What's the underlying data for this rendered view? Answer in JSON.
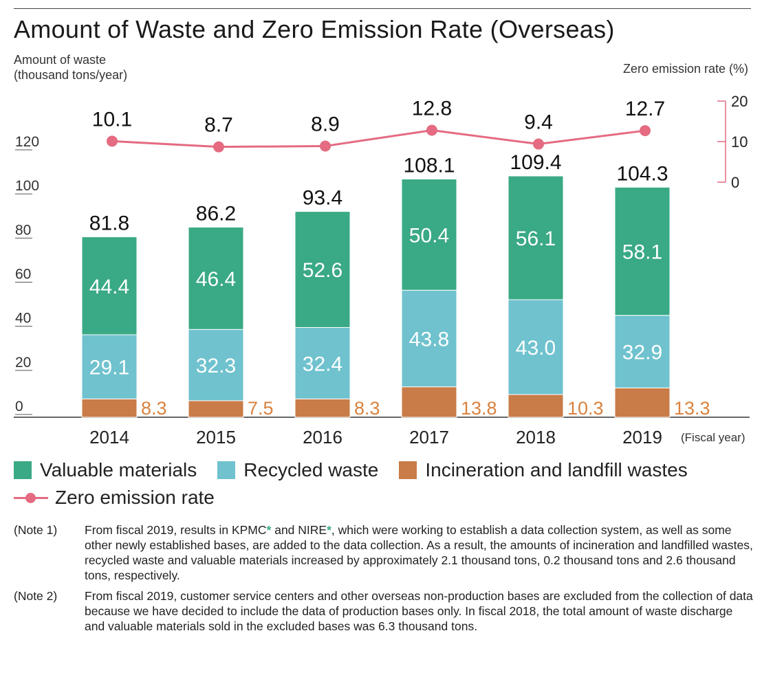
{
  "title": "Amount of Waste and Zero Emission Rate (Overseas)",
  "left_axis_title_line1": "Amount of waste",
  "left_axis_title_line2": "(thousand tons/year)",
  "right_axis_title": "Zero emission rate (%)",
  "x_axis_unit": "(Fiscal year)",
  "colors": {
    "valuable": "#3aa985",
    "recycled": "#6fc2ce",
    "incineration": "#c97c48",
    "incineration_label": "#d9823f",
    "zero_emission": "#e46b81"
  },
  "legend": {
    "valuable": "Valuable materials",
    "recycled": "Recycled waste",
    "incineration": "Incineration and landfill wastes",
    "zero_emission": "Zero emission rate"
  },
  "chart_data": {
    "type": "bar",
    "stacked": true,
    "title": "Amount of Waste and Zero Emission Rate (Overseas)",
    "xlabel": "(Fiscal year)",
    "ylabel": "Amount of waste (thousand tons/year)",
    "categories": [
      "2014",
      "2015",
      "2016",
      "2017",
      "2018",
      "2019"
    ],
    "ylim": [
      0,
      120
    ],
    "yticks": [
      "0",
      "20",
      "40",
      "60",
      "80",
      "100",
      "120"
    ],
    "series": [
      {
        "name": "Incineration and landfill wastes",
        "labels": [
          "8.3",
          "7.5",
          "8.3",
          "13.8",
          "10.3",
          "13.3"
        ],
        "values": [
          8.3,
          7.5,
          8.3,
          13.8,
          10.3,
          13.3
        ]
      },
      {
        "name": "Recycled waste",
        "labels": [
          "29.1",
          "32.3",
          "32.4",
          "43.8",
          "43.0",
          "32.9"
        ],
        "values": [
          29.1,
          32.3,
          32.4,
          43.8,
          43.0,
          32.9
        ]
      },
      {
        "name": "Valuable materials",
        "labels": [
          "44.4",
          "46.4",
          "52.6",
          "50.4",
          "56.1",
          "58.1"
        ],
        "values": [
          44.4,
          46.4,
          52.6,
          50.4,
          56.1,
          58.1
        ]
      }
    ],
    "totals": [
      "81.8",
      "86.2",
      "93.4",
      "108.1",
      "109.4",
      "104.3"
    ],
    "line": {
      "name": "Zero emission rate",
      "labels": [
        "10.1",
        "8.7",
        "8.9",
        "12.8",
        "9.4",
        "12.7"
      ],
      "values": [
        10.1,
        8.7,
        8.9,
        12.8,
        9.4,
        12.7
      ],
      "ylim": [
        0,
        20
      ],
      "yticks": [
        "0",
        "10",
        "20"
      ]
    }
  },
  "notes": [
    {
      "label": "(Note 1)",
      "parts": [
        "From fiscal 2019, results in KPMC",
        "*",
        " and NIRE",
        "*",
        ", which were working to establish a data collection system, as well as some other newly established bases, are added to the data collection. As a result, the amounts of incineration and landfilled wastes, recycled waste and valuable materials increased by approximately 2.1 thousand tons, 0.2 thousand tons and 2.6 thousand tons, respectively."
      ]
    },
    {
      "label": "(Note 2)",
      "text": "From fiscal 2019, customer service centers and other overseas non-production bases are excluded from the collection of data because we have decided to include the data of production bases only. In fiscal 2018, the total amount of waste discharge and valuable materials sold in the excluded bases was 6.3 thousand tons."
    }
  ]
}
